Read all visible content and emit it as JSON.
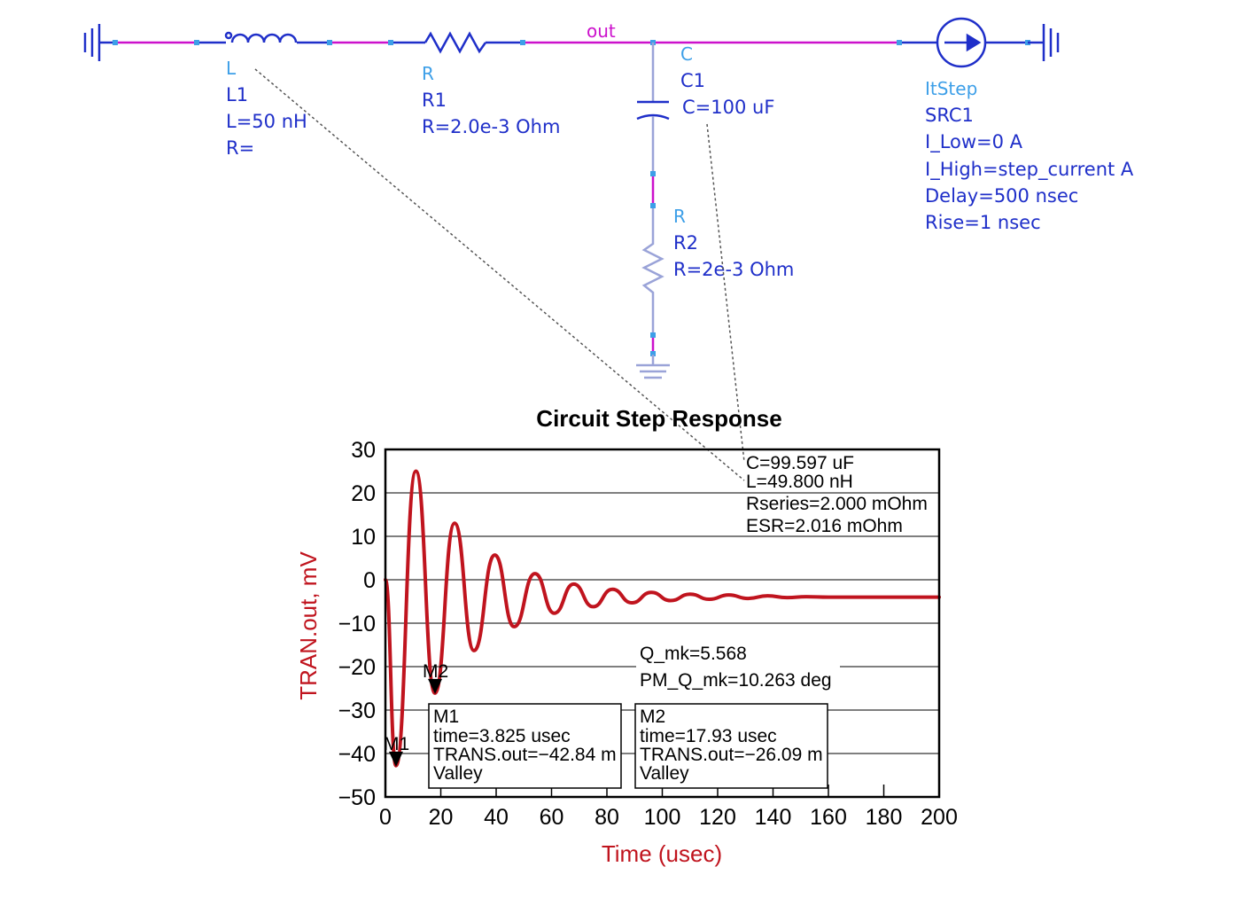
{
  "schematic": {
    "net_label": "out",
    "inductor": {
      "type": "L",
      "instance": "L1",
      "param_l": "L=50 nH",
      "param_r": "R="
    },
    "resistor1": {
      "type": "R",
      "instance": "R1",
      "param_r": "R=2.0e-3 Ohm"
    },
    "capacitor": {
      "type": "C",
      "instance": "C1",
      "param_c": "C=100 uF"
    },
    "resistor2": {
      "type": "R",
      "instance": "R2",
      "param_r": "R=2e-3 Ohm"
    },
    "source": {
      "type": "ItStep",
      "instance": "SRC1",
      "i_low": "I_Low=0 A",
      "i_high": "I_High=step_current A",
      "delay": "Delay=500 nsec",
      "rise": "Rise=1 nsec"
    },
    "colors": {
      "component": "#1f2fc9",
      "wire": "#cc11cc",
      "type_label": "#3d9fe8"
    }
  },
  "chart_data": {
    "type": "line",
    "title": "Circuit Step Response",
    "xlabel": "Time (usec)",
    "ylabel": "TRAN.out, mV",
    "xlim": [
      0,
      200
    ],
    "ylim": [
      -50,
      30
    ],
    "xticks": [
      0,
      20,
      40,
      60,
      80,
      100,
      120,
      140,
      160,
      180,
      200
    ],
    "yticks": [
      30,
      20,
      10,
      0,
      -10,
      -20,
      -30,
      -40,
      -50
    ],
    "xtick_labels": [
      "0",
      "20",
      "40",
      "60",
      "80",
      "100",
      "120",
      "140",
      "160",
      "180",
      "200"
    ],
    "ytick_labels": [
      "30",
      "20",
      "10",
      "0",
      "−10",
      "−20",
      "−30",
      "−40",
      "−50"
    ],
    "grid": "horizontal",
    "series": [
      {
        "color": "#c0141e",
        "x": [
          0,
          3.8,
          11,
          17.9,
          25,
          32,
          39.5,
          46.5,
          54,
          61,
          68,
          75,
          82,
          89,
          96,
          103,
          110,
          117,
          124,
          131,
          138,
          145,
          152,
          160,
          200
        ],
        "y": [
          0,
          -42.8,
          25,
          -26.1,
          13,
          -16.3,
          5.7,
          -10.8,
          1.4,
          -7.7,
          -1,
          -6.2,
          -2.2,
          -5.3,
          -2.9,
          -4.8,
          -3.3,
          -4.5,
          -3.5,
          -4.3,
          -3.7,
          -4.1,
          -3.9,
          -4,
          -4
        ]
      }
    ],
    "parameter_box": [
      "C=99.597 uF",
      "L=49.800 nH",
      "Rseries=2.000 mOhm",
      "ESR=2.016 mOhm"
    ],
    "q_box": [
      "Q_mk=5.568",
      "PM_Q_mk=10.263 deg"
    ],
    "markers": [
      {
        "name": "M1",
        "x": 3.825,
        "y": -42.84,
        "lines": [
          "M1",
          "time=3.825 usec",
          "TRANS.out=−42.84 m",
          "Valley"
        ]
      },
      {
        "name": "M2",
        "x": 17.93,
        "y": -26.09,
        "lines": [
          "M2",
          "time=17.93 usec",
          "TRANS.out=−26.09 m",
          "Valley"
        ]
      }
    ]
  }
}
